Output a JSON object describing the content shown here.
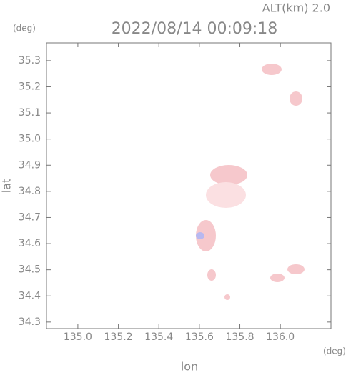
{
  "chart_data": {
    "type": "map",
    "title": "2022/08/14 00:09:18",
    "subtitle": "ALT(km) 2.0",
    "y_unit": "(deg)",
    "x_unit": "(deg)",
    "xlabel": "lon",
    "ylabel": "lat",
    "xlim": [
      134.845,
      136.25
    ],
    "ylim": [
      34.275,
      35.368
    ],
    "xticks": [
      {
        "value": 135,
        "label": "135.0"
      },
      135.2,
      135.4,
      135.6,
      135.8,
      {
        "value": 136,
        "label": "136.0"
      }
    ],
    "yticks": [
      34.3,
      34.4,
      34.5,
      34.6,
      34.7,
      34.8,
      34.9,
      {
        "value": 35,
        "label": "35.0"
      },
      35.1,
      35.2,
      35.3
    ]
  }
}
